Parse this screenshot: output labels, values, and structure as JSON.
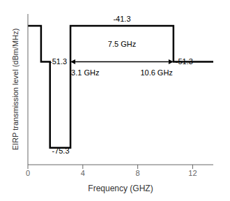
{
  "chart_data": {
    "type": "line",
    "xlabel": "Frequency (GHZ)",
    "ylabel": "EIRP transmission level (dBm/MHz)",
    "x": [
      0,
      0.96,
      0.96,
      1.61,
      1.61,
      3.1,
      3.1,
      10.6,
      10.6,
      13.5
    ],
    "values": [
      -41.3,
      -41.3,
      -51.3,
      -51.3,
      -75.3,
      -75.3,
      -41.3,
      -41.3,
      -51.3,
      -51.3
    ],
    "color": "black",
    "xlim": [
      0,
      13.5
    ],
    "ylim": [
      -80,
      -38
    ],
    "xticks": [
      0,
      4,
      8,
      12
    ],
    "yticks": [],
    "tick_labels": "x",
    "annotations": [
      {
        "text": "-41.3",
        "x": 6.85,
        "y": -40.5
      },
      {
        "text": "-51.3",
        "x": 2.85,
        "y": -51.3
      },
      {
        "text": "-75.3",
        "x": 1.75,
        "y": -75.3
      },
      {
        "text": "-51.3",
        "x": 10.75,
        "y": -51.3
      },
      {
        "text": "7.5 GHz",
        "x": 6.85,
        "y": -47.5
      },
      {
        "text": "3.1 GHz",
        "x": 3.15,
        "y": -53.5
      },
      {
        "text": "10.6 GHz",
        "x": 10.55,
        "y": -53.5
      }
    ],
    "arrow": {
      "x_start": 3.1,
      "x_end": 10.6,
      "y": -51.3
    }
  }
}
